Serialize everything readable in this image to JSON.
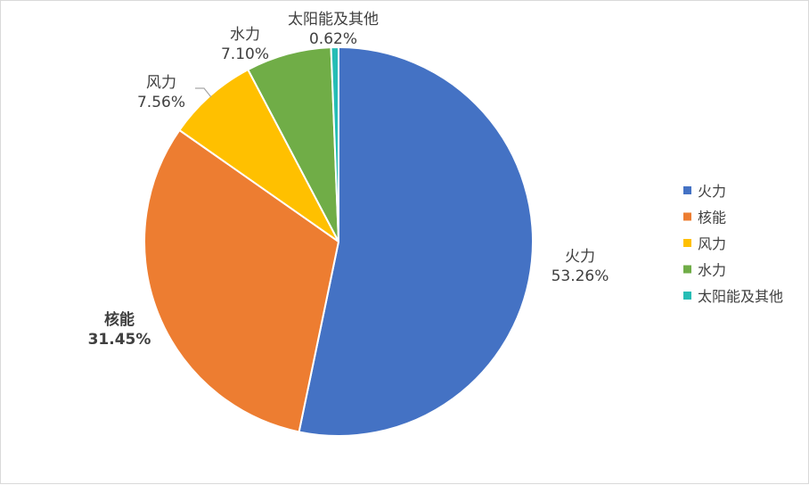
{
  "chart_data": {
    "type": "pie",
    "categories": [
      "火力",
      "核能",
      "风力",
      "水力",
      "太阳能及其他"
    ],
    "values": [
      53.26,
      31.45,
      7.56,
      7.1,
      0.62
    ],
    "value_labels": [
      "53.26%",
      "31.45%",
      "7.56%",
      "7.10%",
      "0.62%"
    ],
    "colors": [
      "#4472C4",
      "#ED7D31",
      "#FFC000",
      "#70AD47",
      "#26BDB5"
    ],
    "legend": [
      "火力",
      "核能",
      "风力",
      "水力",
      "太阳能及其他"
    ],
    "legend_position": "right",
    "title": ""
  }
}
